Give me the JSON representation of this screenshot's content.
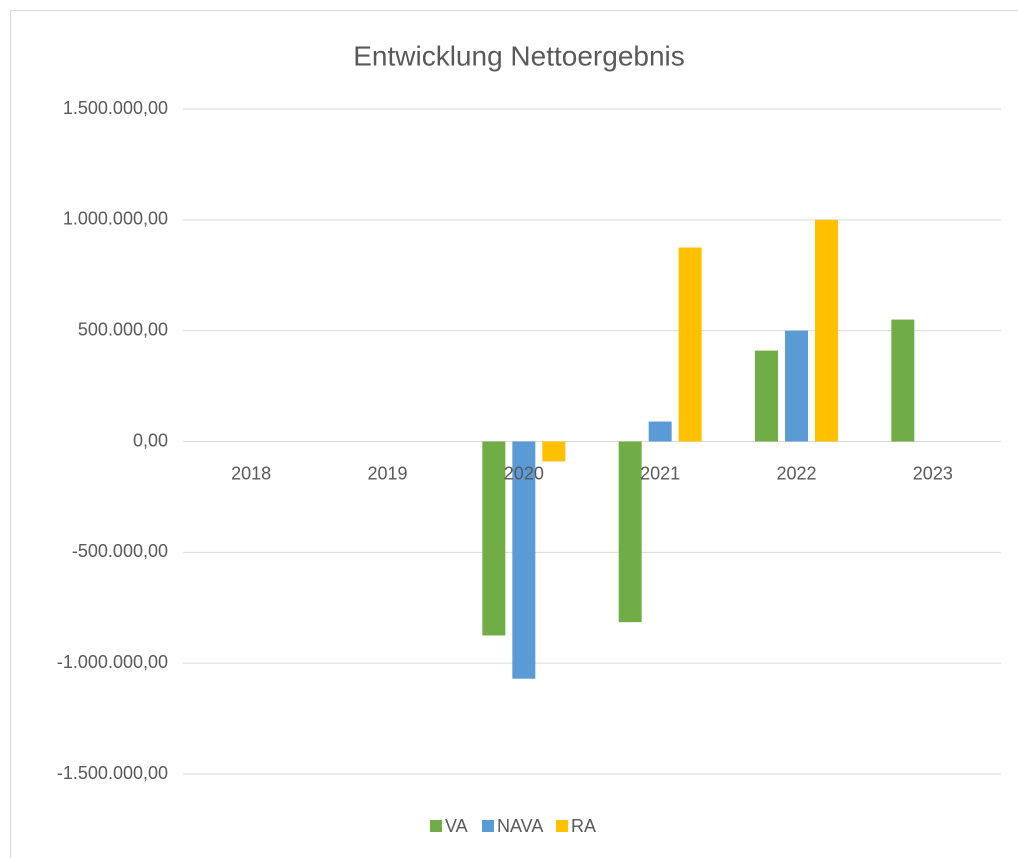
{
  "chart_data": {
    "type": "bar",
    "title": "Entwicklung Nettoergebnis",
    "categories": [
      "2018",
      "2019",
      "2020",
      "2021",
      "2022",
      "2023"
    ],
    "series": [
      {
        "name": "VA",
        "color": "#70ad47",
        "values": [
          null,
          null,
          -875000,
          -815000,
          410000,
          550000
        ]
      },
      {
        "name": "NAVA",
        "color": "#5b9bd5",
        "values": [
          null,
          null,
          -1070000,
          90000,
          500000,
          null
        ]
      },
      {
        "name": "RA",
        "color": "#ffc000",
        "values": [
          null,
          null,
          -90000,
          875000,
          1000000,
          null
        ]
      }
    ],
    "ylim": [
      -1500000,
      1500000
    ],
    "yticks": [
      {
        "value": -1500000,
        "label": "-1.500.000,00"
      },
      {
        "value": -1000000,
        "label": "-1.000.000,00"
      },
      {
        "value": -500000,
        "label": "-500.000,00"
      },
      {
        "value": 0,
        "label": "0,00"
      },
      {
        "value": 500000,
        "label": "500.000,00"
      },
      {
        "value": 1000000,
        "label": "1.000.000,00"
      },
      {
        "value": 1500000,
        "label": "1.500.000,00"
      }
    ],
    "grid": true,
    "legend": "bottom"
  }
}
